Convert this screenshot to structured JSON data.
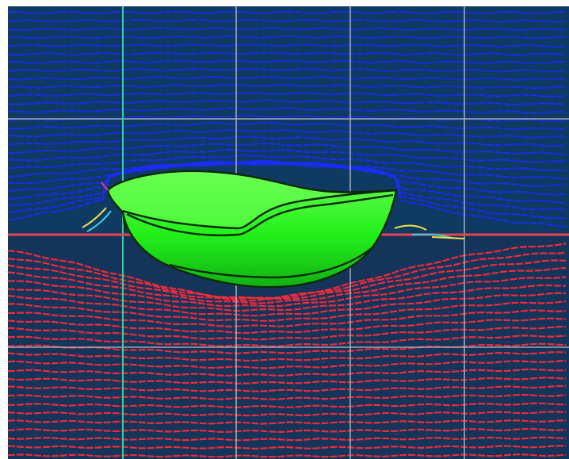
{
  "viewport": {
    "colors": {
      "background": "#ffffff",
      "water_top_tint": "#0f3a62",
      "water_bottom_tint": "#14345a",
      "air_streamline": "#1a2cf2",
      "water_streamline": "#ff2a3a",
      "grid_line": "#b8bcc4",
      "axis_line": "#2fd89a",
      "hull_fill": "#22f01a",
      "hull_highlight": "#6aff52",
      "hull_shadow": "#12b012",
      "hull_outline": "#0a2a0a",
      "free_surface": "#e8454f",
      "wake_spray": "#f2e24a",
      "wake_cyan": "#34d6e8"
    },
    "objects": {
      "hull": "planing-hull-icon",
      "flow": "streamline-field",
      "free_surface": "water-free-surface-line"
    }
  }
}
